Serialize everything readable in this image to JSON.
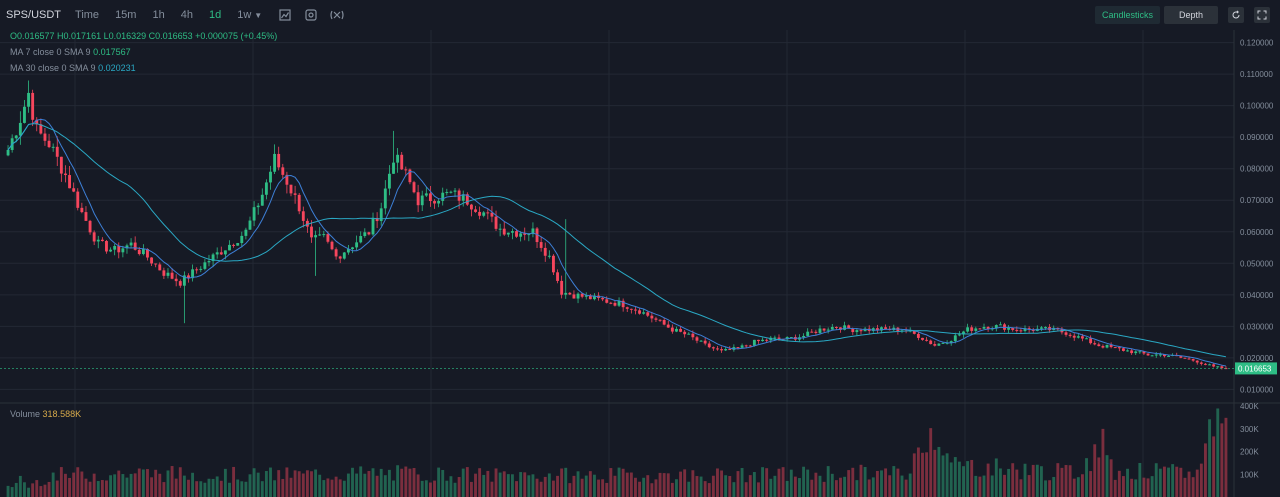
{
  "header": {
    "symbol": "SPS/USDT",
    "timeframes": [
      "Time",
      "15m",
      "1h",
      "4h",
      "1d",
      "1w"
    ],
    "active_timeframe": "1d",
    "view_toggle": {
      "candles_label": "Candlesticks",
      "depth_label": "Depth"
    }
  },
  "legend": {
    "ohlc_text": "O0.016577  H0.017161  L0.016329  C0.016653  +0.000075 (+0.45%)",
    "ma7_label": "MA 7 close 0 SMA 9",
    "ma7_value": "0.017567",
    "ma30_label": "MA 30 close 0 SMA 9",
    "ma30_value": "0.020231",
    "volume_label": "Volume",
    "volume_value": "318.588K"
  },
  "price_axis": {
    "ticks": [
      "0.120000",
      "0.110000",
      "0.100000",
      "0.090000",
      "0.080000",
      "0.070000",
      "0.060000",
      "0.050000",
      "0.040000",
      "0.030000",
      "0.020000",
      "0.010000"
    ],
    "last_price": "0.016653"
  },
  "volume_axis": {
    "ticks": [
      "400K",
      "300K",
      "200K",
      "100K"
    ]
  },
  "colors": {
    "up": "#2ebd85",
    "down": "#f6465d",
    "ma7": "#3d7fd6",
    "ma30": "#2aa8c4",
    "background": "#161a25",
    "grid": "#232834"
  },
  "chart_data": {
    "type": "candlestick",
    "title": "SPS/USDT",
    "ylim": [
      0.006,
      0.124
    ],
    "volume_ylim": [
      0,
      400000
    ],
    "close_anchors": [
      [
        0,
        0.086
      ],
      [
        3,
        0.096
      ],
      [
        5,
        0.104
      ],
      [
        7,
        0.092
      ],
      [
        10,
        0.088
      ],
      [
        14,
        0.078
      ],
      [
        18,
        0.066
      ],
      [
        22,
        0.056
      ],
      [
        26,
        0.054
      ],
      [
        30,
        0.056
      ],
      [
        34,
        0.052
      ],
      [
        38,
        0.047
      ],
      [
        42,
        0.044
      ],
      [
        46,
        0.048
      ],
      [
        50,
        0.052
      ],
      [
        54,
        0.056
      ],
      [
        58,
        0.06
      ],
      [
        62,
        0.072
      ],
      [
        65,
        0.083
      ],
      [
        68,
        0.076
      ],
      [
        71,
        0.068
      ],
      [
        74,
        0.057
      ],
      [
        77,
        0.058
      ],
      [
        80,
        0.052
      ],
      [
        84,
        0.056
      ],
      [
        88,
        0.06
      ],
      [
        91,
        0.068
      ],
      [
        94,
        0.084
      ],
      [
        97,
        0.078
      ],
      [
        100,
        0.07
      ],
      [
        104,
        0.071
      ],
      [
        108,
        0.072
      ],
      [
        112,
        0.07
      ],
      [
        116,
        0.066
      ],
      [
        120,
        0.061
      ],
      [
        124,
        0.06
      ],
      [
        128,
        0.06
      ],
      [
        132,
        0.052
      ],
      [
        135,
        0.041
      ],
      [
        138,
        0.04
      ],
      [
        142,
        0.039
      ],
      [
        146,
        0.038
      ],
      [
        150,
        0.037
      ],
      [
        154,
        0.035
      ],
      [
        158,
        0.032
      ],
      [
        162,
        0.029
      ],
      [
        166,
        0.027
      ],
      [
        170,
        0.024
      ],
      [
        174,
        0.022
      ],
      [
        178,
        0.023
      ],
      [
        182,
        0.025
      ],
      [
        186,
        0.026
      ],
      [
        190,
        0.026
      ],
      [
        194,
        0.027
      ],
      [
        198,
        0.029
      ],
      [
        202,
        0.03
      ],
      [
        206,
        0.029
      ],
      [
        210,
        0.029
      ],
      [
        214,
        0.029
      ],
      [
        218,
        0.029
      ],
      [
        222,
        0.027
      ],
      [
        226,
        0.024
      ],
      [
        230,
        0.026
      ],
      [
        234,
        0.029
      ],
      [
        238,
        0.03
      ],
      [
        242,
        0.03
      ],
      [
        246,
        0.029
      ],
      [
        250,
        0.029
      ],
      [
        254,
        0.029
      ],
      [
        258,
        0.028
      ],
      [
        262,
        0.026
      ],
      [
        266,
        0.024
      ],
      [
        270,
        0.023
      ],
      [
        274,
        0.022
      ],
      [
        278,
        0.021
      ],
      [
        282,
        0.021
      ],
      [
        286,
        0.02
      ],
      [
        290,
        0.019
      ],
      [
        294,
        0.017
      ],
      [
        297,
        0.0167
      ]
    ],
    "volume_anchors": [
      [
        0,
        40000
      ],
      [
        3,
        90000
      ],
      [
        5,
        50000
      ],
      [
        10,
        100000
      ],
      [
        30,
        110000
      ],
      [
        60,
        100000
      ],
      [
        90,
        110000
      ],
      [
        120,
        100000
      ],
      [
        150,
        100000
      ],
      [
        180,
        100000
      ],
      [
        200,
        110000
      ],
      [
        220,
        110000
      ],
      [
        224,
        320000
      ],
      [
        227,
        300000
      ],
      [
        230,
        150000
      ],
      [
        260,
        110000
      ],
      [
        268,
        260000
      ],
      [
        270,
        120000
      ],
      [
        290,
        110000
      ],
      [
        293,
        320000
      ],
      [
        296,
        380000
      ],
      [
        297,
        320000
      ]
    ],
    "candle_count": 298
  }
}
